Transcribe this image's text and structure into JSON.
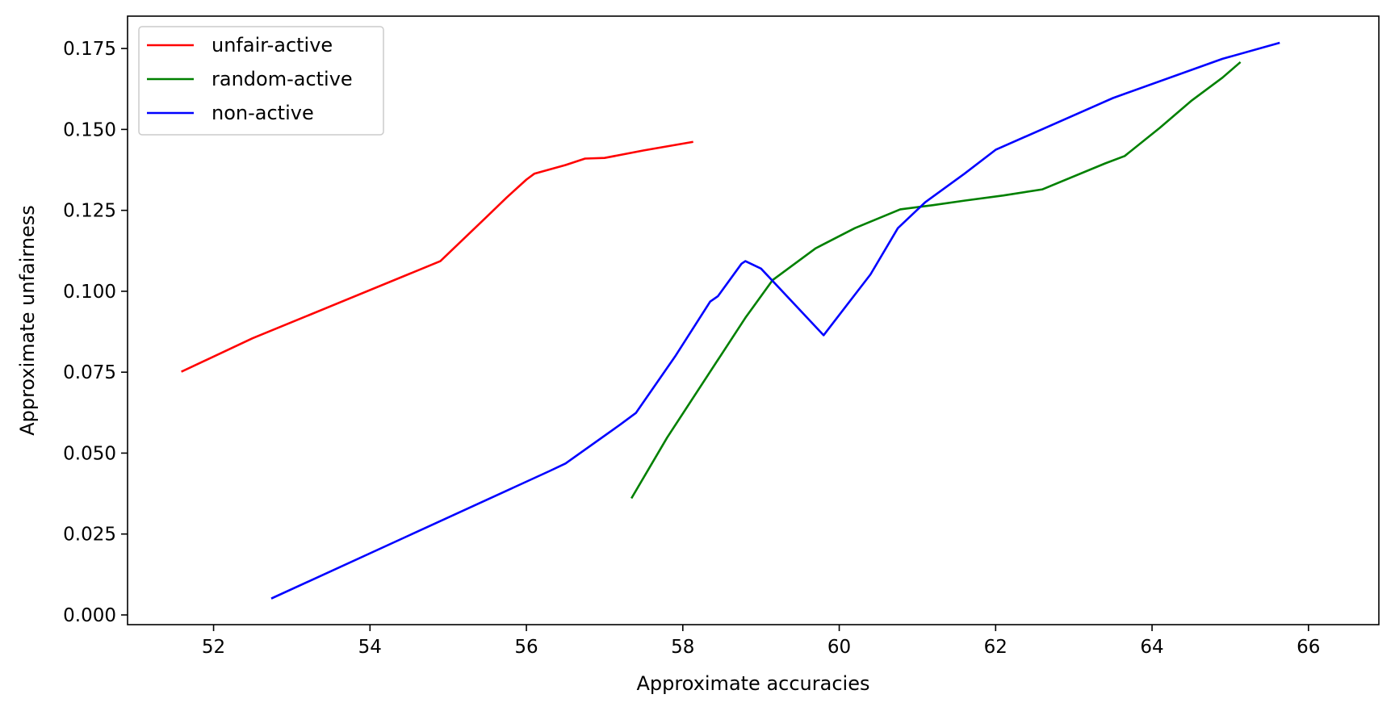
{
  "chart_data": {
    "type": "line",
    "title": "",
    "xlabel": "Approximate accuracies",
    "ylabel": "Approximate unfairness",
    "xlim": [
      50.9,
      66.9
    ],
    "ylim": [
      -0.003,
      0.185
    ],
    "xticks": [
      52,
      54,
      56,
      58,
      60,
      62,
      64,
      66
    ],
    "yticks": [
      0.0,
      0.025,
      0.05,
      0.075,
      0.1,
      0.125,
      0.15,
      0.175
    ],
    "ytick_labels": [
      "0.000",
      "0.025",
      "0.050",
      "0.075",
      "0.100",
      "0.125",
      "0.150",
      "0.175"
    ],
    "grid": false,
    "legend_position": "top-left",
    "series": [
      {
        "name": "unfair-active",
        "color": "#ff0000",
        "points": [
          [
            51.6,
            0.0753
          ],
          [
            52.5,
            0.0855
          ],
          [
            54.9,
            0.1093
          ],
          [
            55.5,
            0.1232
          ],
          [
            55.75,
            0.129
          ],
          [
            56.0,
            0.1345
          ],
          [
            56.1,
            0.1363
          ],
          [
            56.5,
            0.139
          ],
          [
            56.75,
            0.141
          ],
          [
            57.0,
            0.1412
          ],
          [
            57.5,
            0.1435
          ],
          [
            58.12,
            0.1461
          ]
        ]
      },
      {
        "name": "random-active",
        "color": "#008000",
        "points": [
          [
            57.35,
            0.0363
          ],
          [
            57.8,
            0.0548
          ],
          [
            58.8,
            0.0918
          ],
          [
            59.15,
            0.1035
          ],
          [
            59.7,
            0.1133
          ],
          [
            60.2,
            0.1195
          ],
          [
            60.78,
            0.1253
          ],
          [
            61.2,
            0.1266
          ],
          [
            61.6,
            0.128
          ],
          [
            62.1,
            0.1296
          ],
          [
            62.6,
            0.1315
          ],
          [
            63.4,
            0.1395
          ],
          [
            63.65,
            0.1418
          ],
          [
            64.1,
            0.1505
          ],
          [
            64.5,
            0.1588
          ],
          [
            64.9,
            0.166
          ],
          [
            65.12,
            0.1706
          ]
        ]
      },
      {
        "name": "non-active",
        "color": "#0000ff",
        "points": [
          [
            52.75,
            0.0052
          ],
          [
            56.3,
            0.0445
          ],
          [
            56.5,
            0.0468
          ],
          [
            57.2,
            0.0588
          ],
          [
            57.4,
            0.0624
          ],
          [
            57.9,
            0.0798
          ],
          [
            58.35,
            0.0968
          ],
          [
            58.45,
            0.0985
          ],
          [
            58.75,
            0.1085
          ],
          [
            58.8,
            0.1093
          ],
          [
            59.0,
            0.107
          ],
          [
            59.8,
            0.0864
          ],
          [
            60.4,
            0.1052
          ],
          [
            60.75,
            0.1195
          ],
          [
            61.1,
            0.1275
          ],
          [
            61.6,
            0.1363
          ],
          [
            62.0,
            0.1437
          ],
          [
            63.5,
            0.1597
          ],
          [
            64.9,
            0.1718
          ],
          [
            65.62,
            0.1767
          ]
        ]
      }
    ]
  }
}
